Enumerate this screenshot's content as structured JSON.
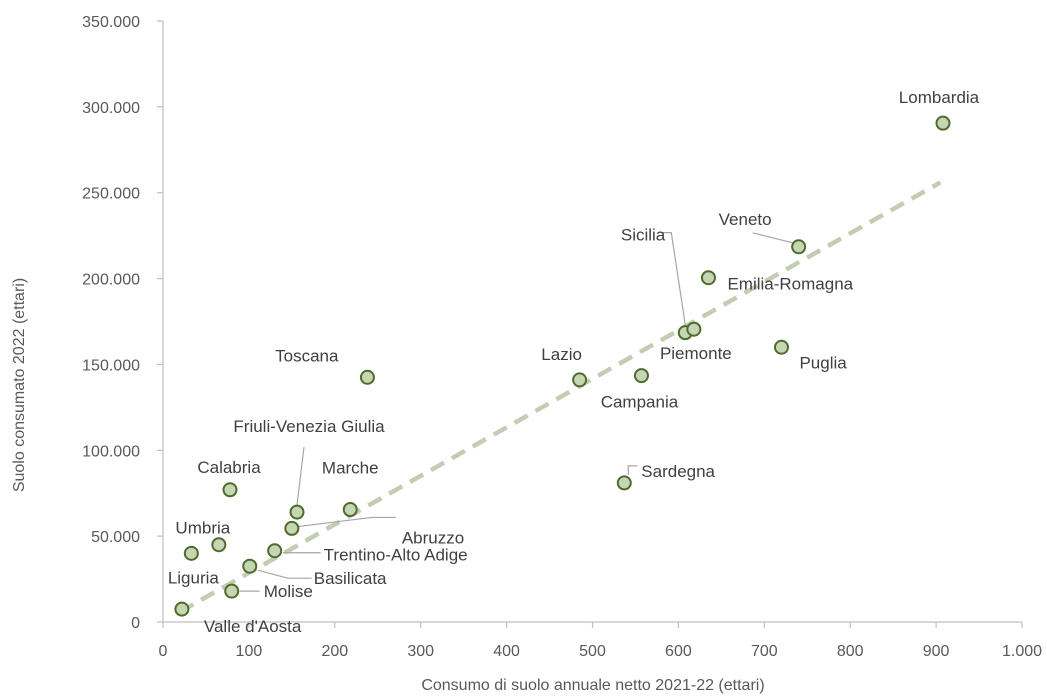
{
  "colors": {
    "marker_fill": "#c5d6b5",
    "marker_stroke": "#4f6b2c",
    "trendline": "#c3cdb3",
    "axis": "#bfbfbf",
    "text": "#595959",
    "label_text": "#404040"
  },
  "chart_data": {
    "type": "scatter",
    "title": "",
    "xlabel": "Consumo di suolo annuale netto 2021-22 (ettari)",
    "ylabel": "Suolo consumato 2022 (ettari)",
    "xlim": [
      0,
      1000
    ],
    "ylim": [
      0,
      350000
    ],
    "x_ticks": [
      0,
      100,
      200,
      300,
      400,
      500,
      600,
      700,
      800,
      900,
      1000
    ],
    "x_tick_labels": [
      "0",
      "100",
      "200",
      "300",
      "400",
      "500",
      "600",
      "700",
      "800",
      "900",
      "1.000"
    ],
    "y_ticks": [
      0,
      50000,
      100000,
      150000,
      200000,
      250000,
      300000,
      350000
    ],
    "y_tick_labels": [
      "0",
      "50.000",
      "100.000",
      "150.000",
      "200.000",
      "250.000",
      "300.000",
      "350.000"
    ],
    "grid": false,
    "legend": "none",
    "trendline": {
      "type": "linear",
      "x": [
        20,
        905
      ],
      "y": [
        6000,
        256000
      ],
      "style": "dashed"
    },
    "points": [
      {
        "name": "Lombardia",
        "x": 908,
        "y": 290500
      },
      {
        "name": "Veneto",
        "x": 740,
        "y": 218500
      },
      {
        "name": "Emilia-Romagna",
        "x": 635,
        "y": 200500
      },
      {
        "name": "Sicilia",
        "x": 608,
        "y": 168500
      },
      {
        "name": "Piemonte",
        "x": 618,
        "y": 170500
      },
      {
        "name": "Puglia",
        "x": 720,
        "y": 160000
      },
      {
        "name": "Lazio",
        "x": 485,
        "y": 141000
      },
      {
        "name": "Campania",
        "x": 557,
        "y": 143500
      },
      {
        "name": "Toscana",
        "x": 238,
        "y": 142500
      },
      {
        "name": "Sardegna",
        "x": 537,
        "y": 81000
      },
      {
        "name": "Calabria",
        "x": 78,
        "y": 77000
      },
      {
        "name": "Friuli-Venezia Giulia",
        "x": 156,
        "y": 64000
      },
      {
        "name": "Marche",
        "x": 218,
        "y": 65500
      },
      {
        "name": "Abruzzo",
        "x": 150,
        "y": 54500
      },
      {
        "name": "Umbria",
        "x": 65,
        "y": 45000
      },
      {
        "name": "Trentino-Alto Adige",
        "x": 130,
        "y": 41500
      },
      {
        "name": "Liguria",
        "x": 33,
        "y": 40000
      },
      {
        "name": "Basilicata",
        "x": 101,
        "y": 32500
      },
      {
        "name": "Molise",
        "x": 80,
        "y": 18000
      },
      {
        "name": "Valle d'Aosta",
        "x": 22,
        "y": 7500
      }
    ]
  }
}
